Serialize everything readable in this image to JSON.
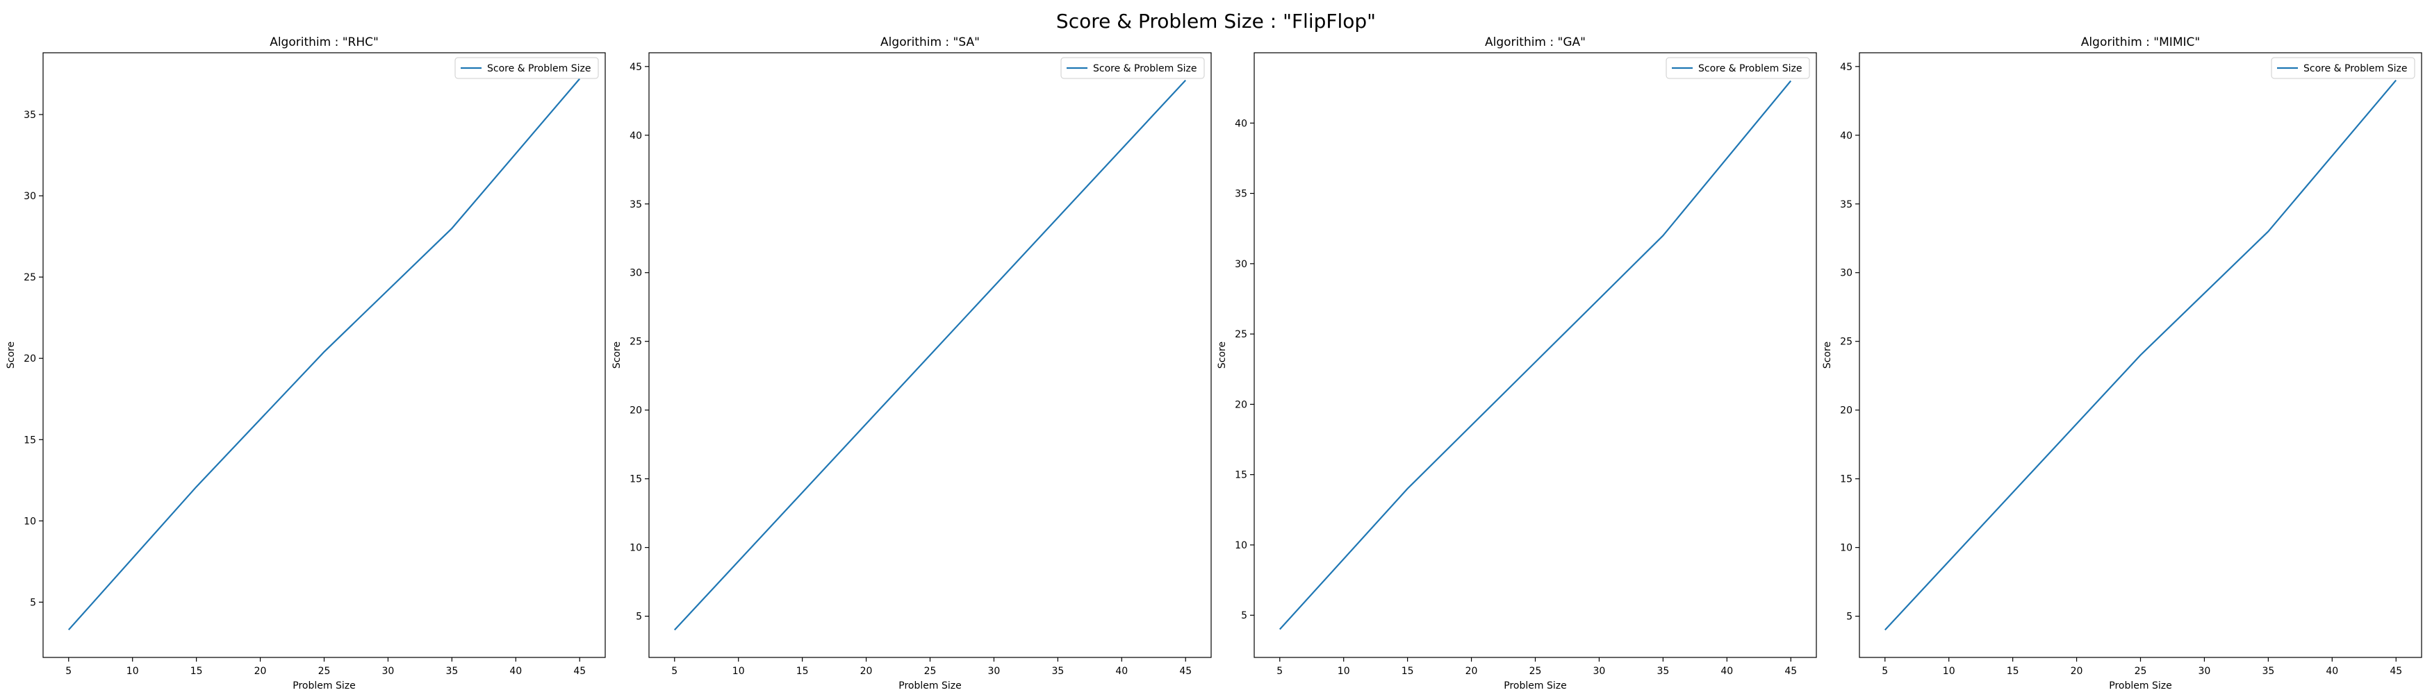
{
  "figure": {
    "suptitle": "Score & Problem Size : \"FlipFlop\""
  },
  "chart_data": [
    {
      "type": "line",
      "title": "Algorithim : \"RHC\"",
      "xlabel": "Problem Size",
      "ylabel": "Score",
      "xlim": [
        3,
        47
      ],
      "ylim": [
        1.6,
        38.8
      ],
      "xticks": [
        5,
        10,
        15,
        20,
        25,
        30,
        35,
        40,
        45
      ],
      "yticks": [
        5,
        10,
        15,
        20,
        25,
        30,
        35
      ],
      "grid": false,
      "legend_position": "top-right",
      "line_color": "#1f77b4",
      "series": [
        {
          "name": "Score & Problem Size",
          "x": [
            5,
            15,
            25,
            35,
            45
          ],
          "y": [
            3.3,
            12.1,
            20.4,
            28.0,
            37.2
          ]
        }
      ]
    },
    {
      "type": "line",
      "title": "Algorithim : \"SA\"",
      "xlabel": "Problem Size",
      "ylabel": "Score",
      "xlim": [
        3,
        47
      ],
      "ylim": [
        2,
        46
      ],
      "xticks": [
        5,
        10,
        15,
        20,
        25,
        30,
        35,
        40,
        45
      ],
      "yticks": [
        5,
        10,
        15,
        20,
        25,
        30,
        35,
        40,
        45
      ],
      "grid": false,
      "legend_position": "top-right",
      "line_color": "#1f77b4",
      "series": [
        {
          "name": "Score & Problem Size",
          "x": [
            5,
            15,
            25,
            35,
            45
          ],
          "y": [
            4.0,
            14.0,
            24.0,
            34.0,
            44.0
          ]
        }
      ]
    },
    {
      "type": "line",
      "title": "Algorithim : \"GA\"",
      "xlabel": "Problem Size",
      "ylabel": "Score",
      "xlim": [
        3,
        47
      ],
      "ylim": [
        2,
        45
      ],
      "xticks": [
        5,
        10,
        15,
        20,
        25,
        30,
        35,
        40,
        45
      ],
      "yticks": [
        5,
        10,
        15,
        20,
        25,
        30,
        35,
        40
      ],
      "grid": false,
      "legend_position": "top-right",
      "line_color": "#1f77b4",
      "series": [
        {
          "name": "Score & Problem Size",
          "x": [
            5,
            15,
            25,
            35,
            45
          ],
          "y": [
            4.0,
            14.0,
            23.0,
            32.0,
            43.0
          ]
        }
      ]
    },
    {
      "type": "line",
      "title": "Algorithim : \"MIMIC\"",
      "xlabel": "Problem Size",
      "ylabel": "Score",
      "xlim": [
        3,
        47
      ],
      "ylim": [
        2,
        46
      ],
      "xticks": [
        5,
        10,
        15,
        20,
        25,
        30,
        35,
        40,
        45
      ],
      "yticks": [
        5,
        10,
        15,
        20,
        25,
        30,
        35,
        40,
        45
      ],
      "grid": false,
      "legend_position": "top-right",
      "line_color": "#1f77b4",
      "series": [
        {
          "name": "Score & Problem Size",
          "x": [
            5,
            15,
            25,
            35,
            45
          ],
          "y": [
            4.0,
            14.0,
            24.0,
            33.0,
            44.0
          ]
        }
      ]
    }
  ]
}
